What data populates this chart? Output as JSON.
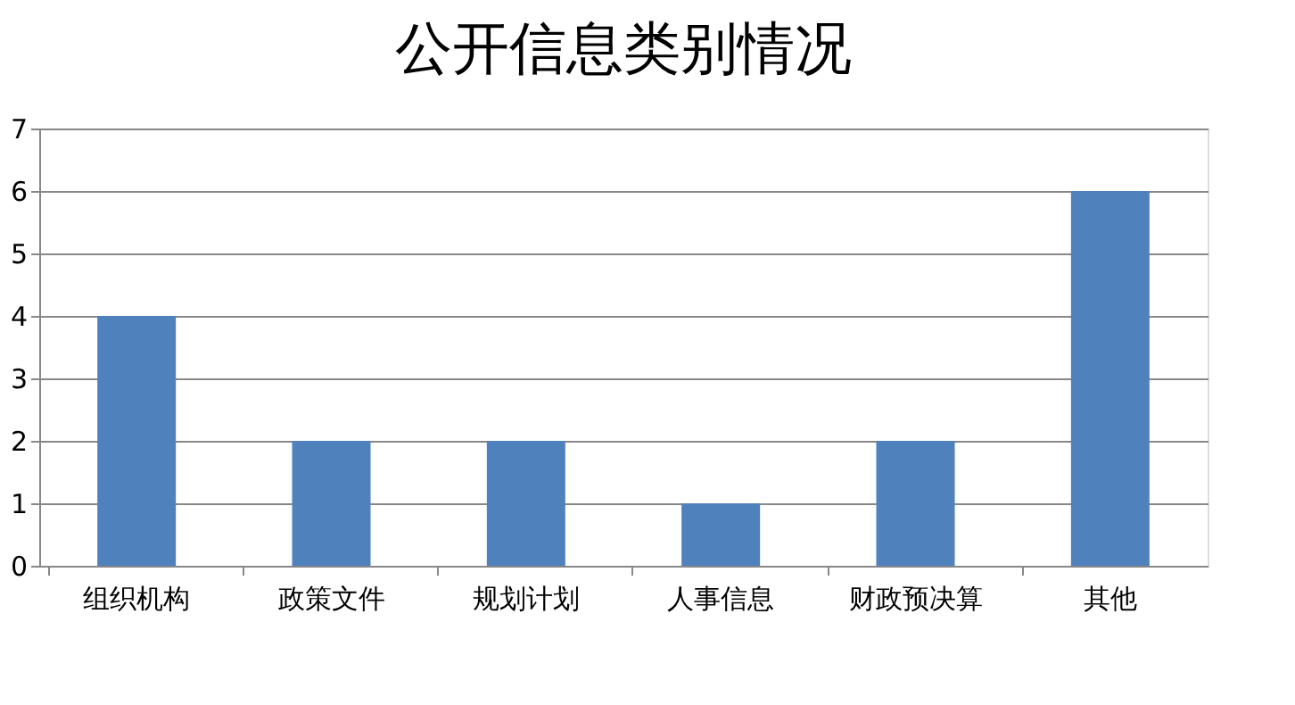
{
  "chart_data": {
    "type": "bar",
    "title": "公开信息类别情况",
    "categories": [
      "组织机构",
      "政策文件",
      "规划计划",
      "人事信息",
      "财政预决算",
      "其他"
    ],
    "values": [
      4,
      2,
      2,
      1,
      2,
      6
    ],
    "color": "#4f81bd",
    "ylim": [
      0,
      7
    ],
    "yticks": [
      0,
      1,
      2,
      3,
      4,
      5,
      6,
      7
    ],
    "grid": "y"
  }
}
